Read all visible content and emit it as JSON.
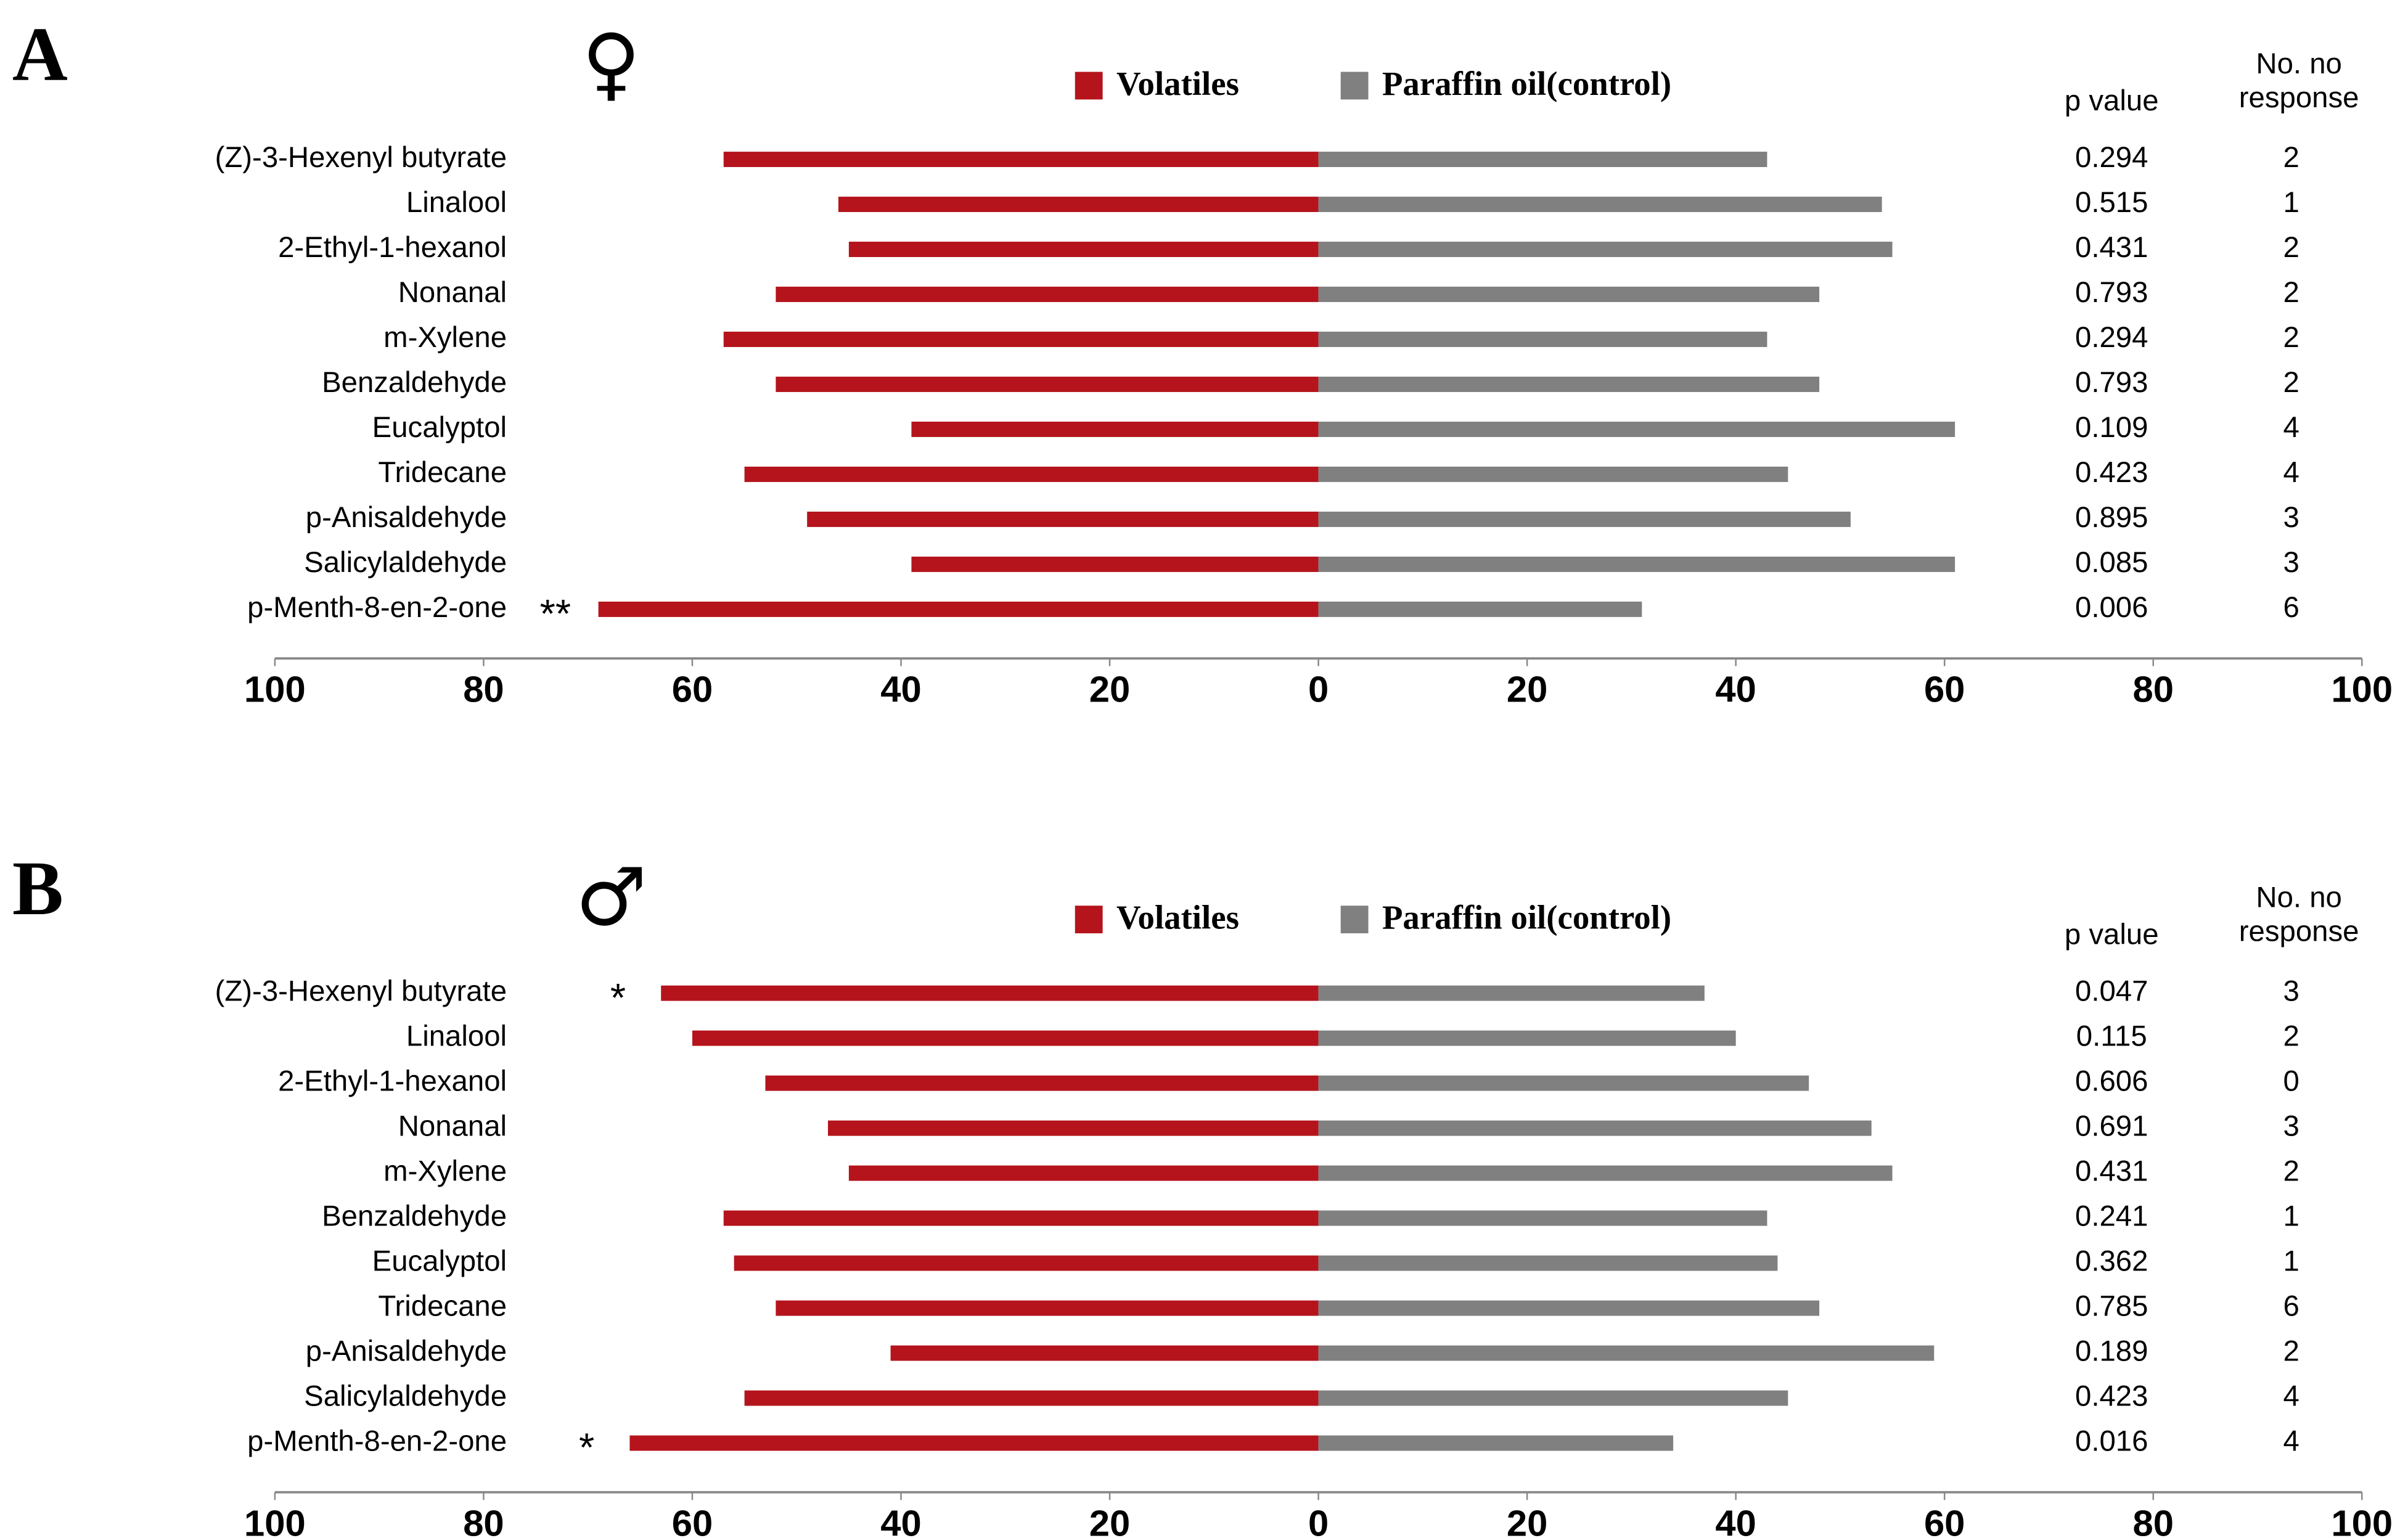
{
  "chart_data": [
    {
      "type": "diverging_bar",
      "panel_label": "A",
      "symbol": "♀",
      "categories": [
        "(Z)-3-Hexenyl butyrate",
        "Linalool",
        "2-Ethyl-1-hexanol",
        "Nonanal",
        "m-Xylene",
        "Benzaldehyde",
        "Eucalyptol",
        "Tridecane",
        "p-Anisaldehyde",
        "Salicylaldehyde",
        "p-Menth-8-en-2-one"
      ],
      "series": [
        {
          "name": "Volatiles",
          "color": "#b5141c",
          "values": [
            -57,
            -46,
            -45,
            -52,
            -57,
            -52,
            -39,
            -55,
            -49,
            -39,
            -69
          ]
        },
        {
          "name": "Paraffin oil(control)",
          "color": "#808080",
          "values": [
            43,
            54,
            55,
            48,
            43,
            48,
            61,
            45,
            51,
            61,
            31
          ]
        }
      ],
      "significance": [
        null,
        null,
        null,
        null,
        null,
        null,
        null,
        null,
        null,
        null,
        "**"
      ],
      "p_value_header": "p value",
      "p_values": [
        0.294,
        0.515,
        0.431,
        0.793,
        0.294,
        0.793,
        0.109,
        0.423,
        0.895,
        0.085,
        0.006
      ],
      "no_response_header": [
        "No. no",
        "response"
      ],
      "no_response": [
        2,
        1,
        2,
        2,
        2,
        2,
        4,
        4,
        3,
        3,
        6
      ],
      "xlim": [
        -100,
        100
      ],
      "xticks": [
        {
          "value": -100,
          "label": "100"
        },
        {
          "value": -80,
          "label": "80"
        },
        {
          "value": -60,
          "label": "60"
        },
        {
          "value": -40,
          "label": "40"
        },
        {
          "value": -20,
          "label": "20"
        },
        0,
        20,
        40,
        60,
        80,
        100
      ]
    },
    {
      "type": "diverging_bar",
      "panel_label": "B",
      "symbol": "♂",
      "categories": [
        "(Z)-3-Hexenyl butyrate",
        "Linalool",
        "2-Ethyl-1-hexanol",
        "Nonanal",
        "m-Xylene",
        "Benzaldehyde",
        "Eucalyptol",
        "Tridecane",
        "p-Anisaldehyde",
        "Salicylaldehyde",
        "p-Menth-8-en-2-one"
      ],
      "series": [
        {
          "name": "Volatiles",
          "color": "#b5141c",
          "values": [
            -63,
            -60,
            -53,
            -47,
            -45,
            -57,
            -56,
            -52,
            -41,
            -55,
            -66
          ]
        },
        {
          "name": "Paraffin oil(control)",
          "color": "#808080",
          "values": [
            37,
            40,
            47,
            53,
            55,
            43,
            44,
            48,
            59,
            45,
            34
          ]
        }
      ],
      "significance": [
        "*",
        null,
        null,
        null,
        null,
        null,
        null,
        null,
        null,
        null,
        "*"
      ],
      "p_value_header": "p value",
      "p_values": [
        0.047,
        0.115,
        0.606,
        0.691,
        0.431,
        0.241,
        0.362,
        0.785,
        0.189,
        0.423,
        0.016
      ],
      "no_response_header": [
        "No. no",
        "response"
      ],
      "no_response": [
        3,
        2,
        0,
        3,
        2,
        1,
        1,
        6,
        2,
        4,
        4
      ],
      "xlim": [
        -100,
        100
      ],
      "xticks": [
        {
          "value": -100,
          "label": "100"
        },
        {
          "value": -80,
          "label": "80"
        },
        {
          "value": -60,
          "label": "60"
        },
        {
          "value": -40,
          "label": "40"
        },
        {
          "value": -20,
          "label": "20"
        },
        0,
        20,
        40,
        60,
        80,
        100
      ]
    }
  ]
}
